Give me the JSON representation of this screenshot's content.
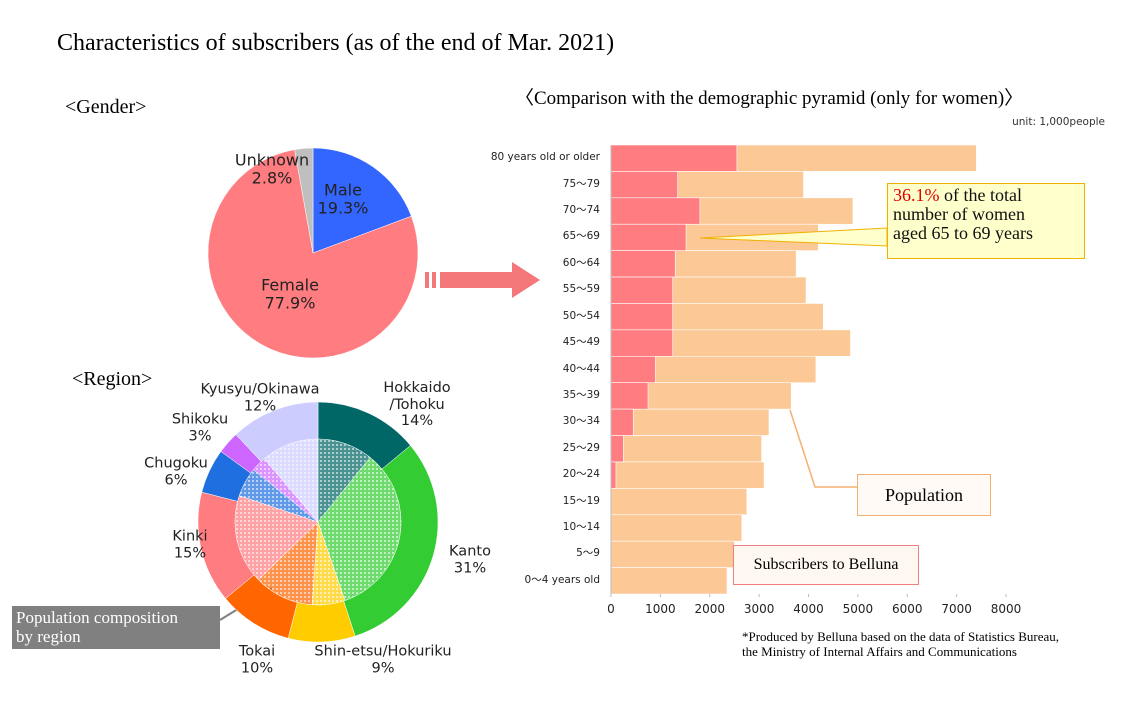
{
  "title": "Characteristics of subscribers (as of the end of Mar. 2021)",
  "footnote": "*Produced by Belluna based on the data of Statistics Bureau,\n the Ministry of Internal Affairs and Communications",
  "chart_data": [
    {
      "type": "pie",
      "title": "<Gender>",
      "categories": [
        "Male",
        "Female",
        "Unknown"
      ],
      "values": [
        19.3,
        77.9,
        2.8
      ],
      "value_labels": [
        "19.3%",
        "77.9%",
        "2.8%"
      ],
      "colors": [
        "#3366ff",
        "#ff7c80",
        "#bfbfbf"
      ]
    },
    {
      "type": "donut",
      "title": "<Region>",
      "categories": [
        "Hokkaido\n/Tohoku",
        "Kanto",
        "Shin-etsu/Hokuriku",
        "Tokai",
        "Kinki",
        "Chugoku",
        "Shikoku",
        "Kyusyu/Okinawa"
      ],
      "colors": [
        "#006666",
        "#33cc33",
        "#ffcc00",
        "#ff6600",
        "#ff7c80",
        "#1f6fe0",
        "#cc66ff",
        "#ccccff"
      ],
      "series": [
        {
          "values": [
            14,
            31,
            9,
            10,
            15,
            6,
            3,
            12
          ],
          "value_labels": [
            "14%",
            "31%",
            "9%",
            "10%",
            "15%",
            "6%",
            "3%",
            "12%"
          ]
        },
        {
          "name": "Population composition\nby region",
          "values": [
            11,
            34.5,
            6.5,
            11.8,
            17.7,
            5.8,
            3,
            11.4
          ]
        }
      ]
    },
    {
      "type": "bar",
      "orientation": "horizontal",
      "title": "〈Comparison with the demographic pyramid (only for women)〉",
      "unit": "unit: 1,000people",
      "annotation": {
        "highlight": "36.1%",
        "text": " of the total\nnumber of women\naged 65 to 69 years"
      },
      "categories": [
        "80 years old or older",
        "75～79",
        "70～74",
        "65～69",
        "60～64",
        "55～59",
        "50～54",
        "45～49",
        "40～44",
        "35～39",
        "30～34",
        "25～29",
        "20～24",
        "15～19",
        "10～14",
        "5～9",
        "0～4 years old"
      ],
      "series": [
        {
          "name": "Population",
          "color": "#fcc896",
          "values": [
            7400,
            3900,
            4900,
            4200,
            3750,
            3950,
            4300,
            4850,
            4150,
            3650,
            3200,
            3050,
            3100,
            2750,
            2650,
            2500,
            2350
          ]
        },
        {
          "name": "Subscribers to Belluna",
          "color": "#ff7c80",
          "values": [
            2550,
            1350,
            1800,
            1520,
            1300,
            1250,
            1250,
            1250,
            900,
            750,
            450,
            250,
            100,
            0,
            0,
            0,
            0
          ]
        }
      ],
      "xlim": [
        0,
        8000
      ],
      "xticks": [
        0,
        1000,
        2000,
        3000,
        4000,
        5000,
        6000,
        7000,
        8000
      ]
    }
  ]
}
